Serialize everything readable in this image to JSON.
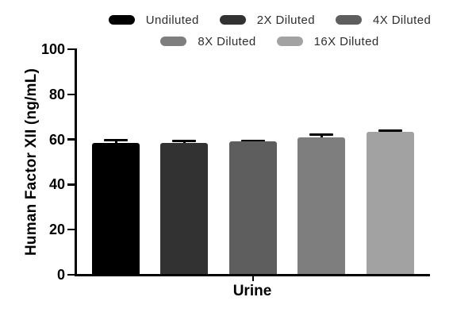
{
  "chart_data": {
    "type": "bar",
    "title": "",
    "xlabel": "Urine",
    "ylabel": "Human Factor XII (ng/mL)",
    "ylim": [
      0,
      100
    ],
    "yticks": [
      0,
      20,
      40,
      60,
      80,
      100
    ],
    "categories": [
      "Urine"
    ],
    "series": [
      {
        "name": "Undiluted",
        "value": 58.6,
        "error": 1.0,
        "color": "#000000"
      },
      {
        "name": "2X Diluted",
        "value": 58.5,
        "error": 1.0,
        "color": "#323232"
      },
      {
        "name": "4X Diluted",
        "value": 59.2,
        "error": 0.3,
        "color": "#5e5e5e"
      },
      {
        "name": "8X Diluted",
        "value": 61.0,
        "error": 1.2,
        "color": "#7e7e7e"
      },
      {
        "name": "16X Diluted",
        "value": 63.5,
        "error": 0.5,
        "color": "#a2a2a2"
      }
    ],
    "legend_position": "top",
    "legend_rows": [
      [
        0,
        1,
        2
      ],
      [
        3,
        4
      ]
    ],
    "error_bar_color": "#000000",
    "axis_color": "#000000",
    "background_color": "#ffffff",
    "grid": false
  }
}
